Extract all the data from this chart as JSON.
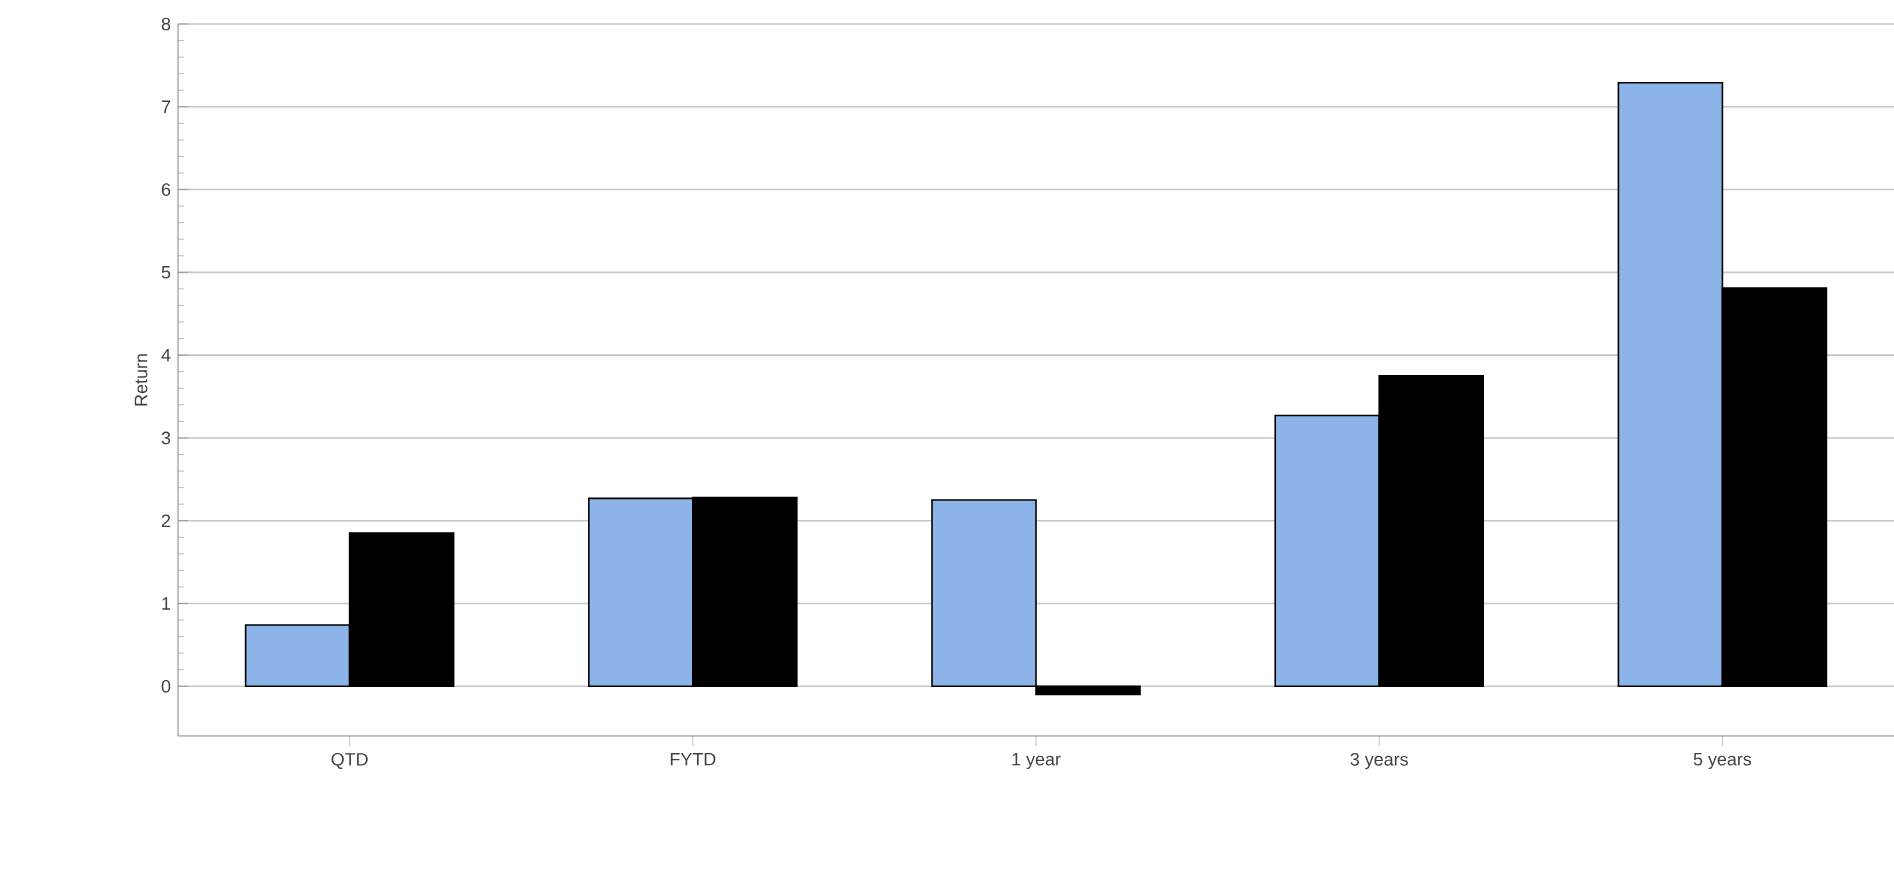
{
  "chart_data": {
    "type": "bar",
    "ylabel": "Return",
    "categories": [
      "QTD",
      "FYTD",
      "1 year",
      "3 years",
      "5 years"
    ],
    "series": [
      {
        "color": "#8db4e8",
        "values": [
          0.74,
          2.27,
          2.25,
          3.27,
          7.29
        ]
      },
      {
        "color": "#000000",
        "values": [
          1.85,
          2.28,
          -0.1,
          3.75,
          4.81
        ]
      }
    ],
    "ylim": [
      -0.6,
      8
    ],
    "yticks": [
      0,
      1,
      2,
      3,
      4,
      5,
      6,
      7,
      8
    ],
    "grid": "y"
  }
}
